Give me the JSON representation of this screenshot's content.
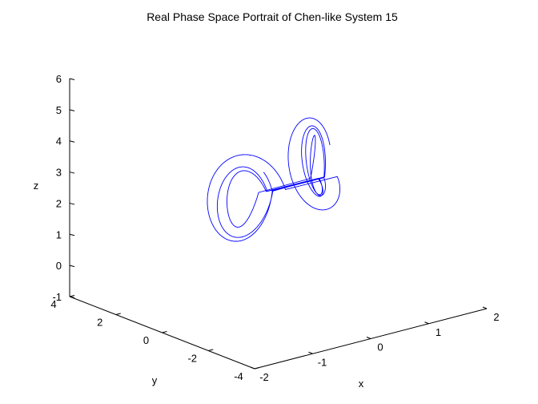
{
  "chart_data": {
    "type": "line",
    "title": "Real Phase Space Portrait of Chen-like System 15",
    "xlabel": "x",
    "ylabel": "y",
    "zlabel": "z",
    "xlim": [
      -2,
      2
    ],
    "ylim": [
      -4,
      4
    ],
    "zlim": [
      -1,
      6
    ],
    "x_ticks": [
      "-2",
      "-1",
      "0",
      "1",
      "2"
    ],
    "y_ticks": [
      "-4",
      "-2",
      "0",
      "2",
      "4"
    ],
    "z_ticks": [
      "-1",
      "0",
      "1",
      "2",
      "3",
      "4",
      "5",
      "6"
    ],
    "grid": false,
    "legend": "none",
    "series": [
      {
        "color": "#0000ff",
        "params": {
          "scale_x": 1.8,
          "scale_y": 3.2,
          "z_center": 2.6,
          "z_amp": 1.6,
          "turns": 7
        }
      }
    ]
  }
}
